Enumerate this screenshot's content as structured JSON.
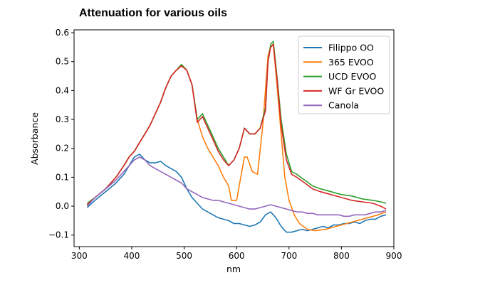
{
  "chart_data": {
    "type": "line",
    "title": "Attenuation for various oils",
    "xlabel": "nm",
    "ylabel": "Absorbance",
    "xlim": [
      290,
      900
    ],
    "ylim": [
      -0.14,
      0.61
    ],
    "xticks": [
      300,
      400,
      500,
      600,
      700,
      800,
      900
    ],
    "yticks": [
      -0.1,
      0.0,
      0.1,
      0.2,
      0.3,
      0.4,
      0.5,
      0.6
    ],
    "ytick_labels": [
      "−0.1",
      "0.0",
      "0.1",
      "0.2",
      "0.3",
      "0.4",
      "0.5",
      "0.6"
    ],
    "grid": false,
    "legend_position": "top-right",
    "series": [
      {
        "name": "Filippo OO",
        "color": "#1f77b4",
        "points": [
          [
            315,
            -0.005
          ],
          [
            330,
            0.02
          ],
          [
            350,
            0.05
          ],
          [
            370,
            0.08
          ],
          [
            385,
            0.11
          ],
          [
            395,
            0.14
          ],
          [
            405,
            0.17
          ],
          [
            415,
            0.18
          ],
          [
            425,
            0.16
          ],
          [
            435,
            0.15
          ],
          [
            445,
            0.15
          ],
          [
            455,
            0.155
          ],
          [
            465,
            0.14
          ],
          [
            475,
            0.13
          ],
          [
            485,
            0.12
          ],
          [
            495,
            0.1
          ],
          [
            505,
            0.06
          ],
          [
            515,
            0.03
          ],
          [
            525,
            0.01
          ],
          [
            535,
            -0.01
          ],
          [
            545,
            -0.02
          ],
          [
            555,
            -0.03
          ],
          [
            565,
            -0.04
          ],
          [
            575,
            -0.045
          ],
          [
            585,
            -0.05
          ],
          [
            595,
            -0.06
          ],
          [
            605,
            -0.06
          ],
          [
            615,
            -0.065
          ],
          [
            625,
            -0.07
          ],
          [
            635,
            -0.065
          ],
          [
            645,
            -0.055
          ],
          [
            655,
            -0.03
          ],
          [
            665,
            -0.02
          ],
          [
            675,
            -0.04
          ],
          [
            685,
            -0.07
          ],
          [
            695,
            -0.09
          ],
          [
            705,
            -0.09
          ],
          [
            715,
            -0.085
          ],
          [
            725,
            -0.08
          ],
          [
            735,
            -0.085
          ],
          [
            745,
            -0.08
          ],
          [
            755,
            -0.075
          ],
          [
            765,
            -0.07
          ],
          [
            775,
            -0.075
          ],
          [
            785,
            -0.065
          ],
          [
            795,
            -0.065
          ],
          [
            805,
            -0.06
          ],
          [
            815,
            -0.06
          ],
          [
            825,
            -0.055
          ],
          [
            835,
            -0.06
          ],
          [
            845,
            -0.05
          ],
          [
            855,
            -0.045
          ],
          [
            865,
            -0.045
          ],
          [
            875,
            -0.035
          ],
          [
            885,
            -0.03
          ]
        ]
      },
      {
        "name": "365 EVOO",
        "color": "#ff7f0e",
        "points": [
          [
            315,
            0.005
          ],
          [
            330,
            0.03
          ],
          [
            350,
            0.06
          ],
          [
            370,
            0.1
          ],
          [
            385,
            0.14
          ],
          [
            395,
            0.17
          ],
          [
            405,
            0.19
          ],
          [
            415,
            0.22
          ],
          [
            425,
            0.25
          ],
          [
            435,
            0.28
          ],
          [
            445,
            0.32
          ],
          [
            455,
            0.36
          ],
          [
            465,
            0.41
          ],
          [
            475,
            0.45
          ],
          [
            485,
            0.47
          ],
          [
            495,
            0.49
          ],
          [
            505,
            0.47
          ],
          [
            515,
            0.42
          ],
          [
            525,
            0.3
          ],
          [
            535,
            0.24
          ],
          [
            545,
            0.2
          ],
          [
            555,
            0.17
          ],
          [
            565,
            0.14
          ],
          [
            575,
            0.1
          ],
          [
            585,
            0.07
          ],
          [
            590,
            0.02
          ],
          [
            600,
            0.02
          ],
          [
            610,
            0.12
          ],
          [
            615,
            0.17
          ],
          [
            620,
            0.17
          ],
          [
            630,
            0.12
          ],
          [
            640,
            0.11
          ],
          [
            650,
            0.28
          ],
          [
            660,
            0.52
          ],
          [
            665,
            0.55
          ],
          [
            670,
            0.56
          ],
          [
            677,
            0.42
          ],
          [
            685,
            0.25
          ],
          [
            692,
            0.1
          ],
          [
            700,
            0.02
          ],
          [
            710,
            -0.03
          ],
          [
            720,
            -0.06
          ],
          [
            735,
            -0.08
          ],
          [
            750,
            -0.085
          ],
          [
            770,
            -0.08
          ],
          [
            790,
            -0.07
          ],
          [
            810,
            -0.06
          ],
          [
            830,
            -0.05
          ],
          [
            850,
            -0.04
          ],
          [
            870,
            -0.03
          ],
          [
            885,
            -0.02
          ]
        ]
      },
      {
        "name": "UCD EVOO",
        "color": "#2ca02c",
        "points": [
          [
            315,
            0.01
          ],
          [
            330,
            0.03
          ],
          [
            350,
            0.06
          ],
          [
            370,
            0.1
          ],
          [
            385,
            0.14
          ],
          [
            395,
            0.17
          ],
          [
            405,
            0.19
          ],
          [
            415,
            0.22
          ],
          [
            425,
            0.25
          ],
          [
            435,
            0.28
          ],
          [
            445,
            0.32
          ],
          [
            455,
            0.36
          ],
          [
            465,
            0.41
          ],
          [
            475,
            0.45
          ],
          [
            485,
            0.47
          ],
          [
            495,
            0.49
          ],
          [
            505,
            0.47
          ],
          [
            515,
            0.42
          ],
          [
            525,
            0.3
          ],
          [
            535,
            0.32
          ],
          [
            545,
            0.28
          ],
          [
            555,
            0.24
          ],
          [
            565,
            0.2
          ],
          [
            575,
            0.17
          ],
          [
            585,
            0.14
          ],
          [
            595,
            0.16
          ],
          [
            605,
            0.2
          ],
          [
            615,
            0.27
          ],
          [
            625,
            0.25
          ],
          [
            635,
            0.25
          ],
          [
            645,
            0.27
          ],
          [
            655,
            0.34
          ],
          [
            660,
            0.5
          ],
          [
            665,
            0.56
          ],
          [
            670,
            0.57
          ],
          [
            677,
            0.45
          ],
          [
            685,
            0.3
          ],
          [
            695,
            0.18
          ],
          [
            705,
            0.12
          ],
          [
            715,
            0.11
          ],
          [
            730,
            0.09
          ],
          [
            745,
            0.07
          ],
          [
            760,
            0.06
          ],
          [
            780,
            0.05
          ],
          [
            800,
            0.04
          ],
          [
            820,
            0.035
          ],
          [
            840,
            0.025
          ],
          [
            860,
            0.02
          ],
          [
            875,
            0.015
          ],
          [
            885,
            0.01
          ]
        ]
      },
      {
        "name": "WF Gr EVOO",
        "color": "#d62728",
        "points": [
          [
            315,
            0.005
          ],
          [
            330,
            0.03
          ],
          [
            350,
            0.06
          ],
          [
            370,
            0.1
          ],
          [
            385,
            0.14
          ],
          [
            395,
            0.17
          ],
          [
            405,
            0.19
          ],
          [
            415,
            0.22
          ],
          [
            425,
            0.25
          ],
          [
            435,
            0.28
          ],
          [
            445,
            0.32
          ],
          [
            455,
            0.36
          ],
          [
            465,
            0.41
          ],
          [
            475,
            0.45
          ],
          [
            485,
            0.47
          ],
          [
            495,
            0.485
          ],
          [
            505,
            0.47
          ],
          [
            515,
            0.42
          ],
          [
            525,
            0.29
          ],
          [
            535,
            0.31
          ],
          [
            545,
            0.27
          ],
          [
            555,
            0.23
          ],
          [
            565,
            0.19
          ],
          [
            575,
            0.16
          ],
          [
            585,
            0.14
          ],
          [
            595,
            0.16
          ],
          [
            605,
            0.2
          ],
          [
            615,
            0.27
          ],
          [
            625,
            0.25
          ],
          [
            635,
            0.25
          ],
          [
            645,
            0.27
          ],
          [
            655,
            0.33
          ],
          [
            660,
            0.5
          ],
          [
            665,
            0.55
          ],
          [
            670,
            0.56
          ],
          [
            677,
            0.44
          ],
          [
            685,
            0.28
          ],
          [
            695,
            0.16
          ],
          [
            705,
            0.11
          ],
          [
            715,
            0.1
          ],
          [
            730,
            0.08
          ],
          [
            745,
            0.06
          ],
          [
            760,
            0.05
          ],
          [
            780,
            0.04
          ],
          [
            800,
            0.03
          ],
          [
            820,
            0.02
          ],
          [
            840,
            0.015
          ],
          [
            860,
            0.01
          ],
          [
            875,
            0.0
          ],
          [
            885,
            -0.01
          ]
        ]
      },
      {
        "name": "Canola",
        "color": "#9467bd",
        "points": [
          [
            315,
            0.0
          ],
          [
            330,
            0.03
          ],
          [
            350,
            0.06
          ],
          [
            370,
            0.09
          ],
          [
            385,
            0.12
          ],
          [
            395,
            0.14
          ],
          [
            405,
            0.16
          ],
          [
            415,
            0.17
          ],
          [
            425,
            0.16
          ],
          [
            435,
            0.14
          ],
          [
            445,
            0.13
          ],
          [
            455,
            0.12
          ],
          [
            465,
            0.11
          ],
          [
            475,
            0.1
          ],
          [
            485,
            0.09
          ],
          [
            495,
            0.08
          ],
          [
            505,
            0.06
          ],
          [
            515,
            0.05
          ],
          [
            525,
            0.04
          ],
          [
            535,
            0.03
          ],
          [
            545,
            0.025
          ],
          [
            555,
            0.02
          ],
          [
            565,
            0.02
          ],
          [
            575,
            0.015
          ],
          [
            585,
            0.01
          ],
          [
            595,
            0.005
          ],
          [
            605,
            0.0
          ],
          [
            615,
            -0.005
          ],
          [
            625,
            -0.01
          ],
          [
            635,
            -0.01
          ],
          [
            645,
            -0.005
          ],
          [
            655,
            0.0
          ],
          [
            665,
            0.005
          ],
          [
            675,
            0.0
          ],
          [
            685,
            -0.005
          ],
          [
            695,
            -0.01
          ],
          [
            705,
            -0.015
          ],
          [
            715,
            -0.02
          ],
          [
            725,
            -0.02
          ],
          [
            735,
            -0.025
          ],
          [
            745,
            -0.025
          ],
          [
            755,
            -0.03
          ],
          [
            765,
            -0.03
          ],
          [
            775,
            -0.03
          ],
          [
            785,
            -0.03
          ],
          [
            795,
            -0.03
          ],
          [
            805,
            -0.035
          ],
          [
            815,
            -0.035
          ],
          [
            825,
            -0.03
          ],
          [
            835,
            -0.03
          ],
          [
            845,
            -0.03
          ],
          [
            855,
            -0.025
          ],
          [
            865,
            -0.02
          ],
          [
            875,
            -0.02
          ],
          [
            885,
            -0.015
          ]
        ]
      }
    ]
  }
}
